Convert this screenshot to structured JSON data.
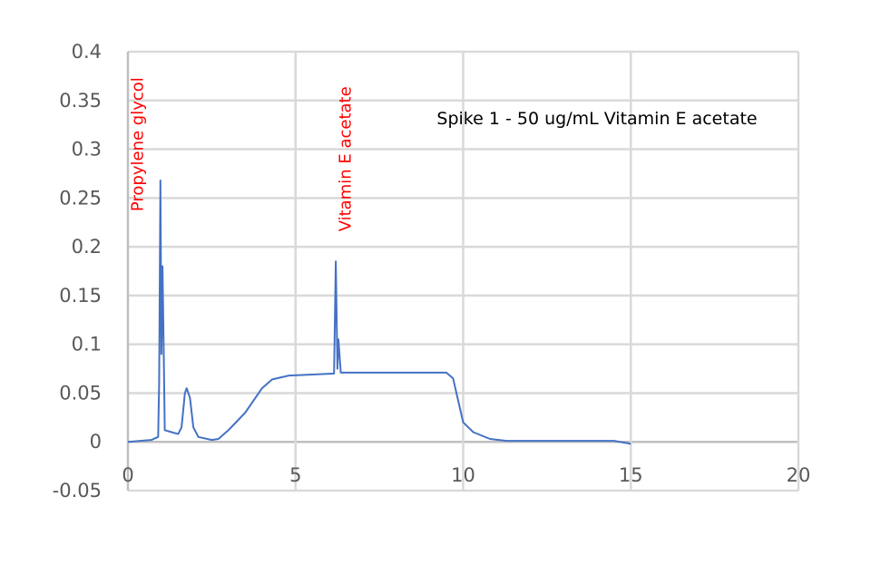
{
  "chart_data": {
    "type": "line",
    "title": "Spike 1 - 50 ug/mL Vitamin E acetate",
    "xlabel": "",
    "ylabel": "",
    "xlim": [
      0,
      20
    ],
    "ylim": [
      -0.05,
      0.4
    ],
    "x_ticks": [
      "0",
      "5",
      "10",
      "15",
      "20"
    ],
    "y_ticks": [
      "0.4",
      "0.35",
      "0.3",
      "0.25",
      "0.2",
      "0.15",
      "0.1",
      "0.05",
      "0",
      "-0.05"
    ],
    "grid": true,
    "legend": null,
    "annotations": [
      {
        "text": "Propylene glycol",
        "x": 0.45,
        "y": 0.305,
        "rotation": -90,
        "color": "#ff0000"
      },
      {
        "text": "Vitamin E acetate",
        "x": 6.65,
        "y": 0.29,
        "rotation": -90,
        "color": "#ff0000"
      }
    ],
    "series": [
      {
        "name": "Spike 1 - 50 ug/mL Vitamin E acetate",
        "color": "#4472c4",
        "x": [
          0,
          0.7,
          0.9,
          0.93,
          0.97,
          1.0,
          1.03,
          1.07,
          1.1,
          1.3,
          1.5,
          1.6,
          1.7,
          1.75,
          1.85,
          1.95,
          2.1,
          2.5,
          2.7,
          3.0,
          3.5,
          4.0,
          4.3,
          4.8,
          5.5,
          6.15,
          6.2,
          6.25,
          6.28,
          6.35,
          7.0,
          9.5,
          9.7,
          9.9,
          10.0,
          10.3,
          10.8,
          11.3,
          14.5,
          15.0
        ],
        "y": [
          0,
          0.002,
          0.005,
          0.06,
          0.268,
          0.09,
          0.18,
          0.09,
          0.012,
          0.01,
          0.008,
          0.015,
          0.05,
          0.055,
          0.045,
          0.015,
          0.005,
          0.002,
          0.003,
          0.012,
          0.03,
          0.055,
          0.064,
          0.068,
          0.069,
          0.07,
          0.185,
          0.075,
          0.105,
          0.071,
          0.071,
          0.071,
          0.065,
          0.035,
          0.02,
          0.01,
          0.003,
          0.001,
          0.001,
          -0.002
        ]
      }
    ]
  },
  "colors": {
    "line": "#4472c4",
    "grid": "#d9d9d9",
    "annotation": "#ff0000",
    "tick_text": "#595959"
  }
}
